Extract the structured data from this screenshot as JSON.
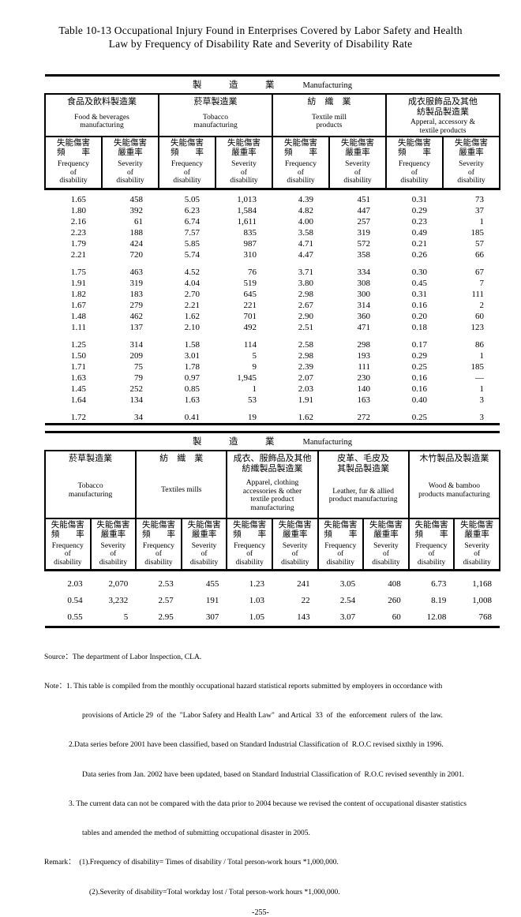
{
  "page": {
    "title": "Table 10-13  Occupational Injury Found in Enterprises Covered by Labor Safety and Health\nLaw by Frequency of Disability Rate and Severity of Disability Rate",
    "page_number": "-255-"
  },
  "sub_labels": {
    "freq_zh": "失能傷害\n頻　　率",
    "freq_en": "Frequency\nof\ndisability",
    "sev_zh": "失能傷害\n嚴重率",
    "sev_en": "Severity\nof\ndisability"
  },
  "table1": {
    "band": {
      "zh": "製　　　造　　　業",
      "en": "Manufacturing"
    },
    "groups": [
      {
        "zh": "食品及飲料製造業",
        "en": "Food & beverages\nmanufacturing"
      },
      {
        "zh": "菸草製造業",
        "en": "Tobacco\nmanufacturing"
      },
      {
        "zh": "紡　織　業",
        "en": "Textile mill\nproducts"
      },
      {
        "zh": "成衣服飾品及其他\n紡製品製造業",
        "en": "Apperal, accessory &\ntextile products"
      }
    ],
    "rows": [
      [
        "1.65",
        "458",
        "5.05",
        "1,013",
        "4.39",
        "451",
        "0.31",
        "73"
      ],
      [
        "1.80",
        "392",
        "6.23",
        "1,584",
        "4.82",
        "447",
        "0.29",
        "37"
      ],
      [
        "2.16",
        "61",
        "6.74",
        "1,611",
        "4.00",
        "257",
        "0.23",
        "1"
      ],
      [
        "2.23",
        "188",
        "7.57",
        "835",
        "3.58",
        "319",
        "0.49",
        "185"
      ],
      [
        "1.79",
        "424",
        "5.85",
        "987",
        "4.71",
        "572",
        "0.21",
        "57"
      ],
      [
        "2.21",
        "720",
        "5.74",
        "310",
        "4.47",
        "358",
        "0.26",
        "66"
      ],
      null,
      [
        "1.75",
        "463",
        "4.52",
        "76",
        "3.71",
        "334",
        "0.30",
        "67"
      ],
      [
        "1.91",
        "319",
        "4.04",
        "519",
        "3.80",
        "308",
        "0.45",
        "7"
      ],
      [
        "1.82",
        "183",
        "2.70",
        "645",
        "2.98",
        "300",
        "0.31",
        "111"
      ],
      [
        "1.67",
        "279",
        "2.21",
        "221",
        "2.67",
        "314",
        "0.16",
        "2"
      ],
      [
        "1.48",
        "462",
        "1.62",
        "701",
        "2.90",
        "360",
        "0.20",
        "60"
      ],
      [
        "1.11",
        "137",
        "2.10",
        "492",
        "2.51",
        "471",
        "0.18",
        "123"
      ],
      null,
      [
        "1.25",
        "314",
        "1.58",
        "114",
        "2.58",
        "298",
        "0.17",
        "86"
      ],
      [
        "1.50",
        "209",
        "3.01",
        "5",
        "2.98",
        "193",
        "0.29",
        "1"
      ],
      [
        "1.71",
        "75",
        "1.78",
        "9",
        "2.39",
        "111",
        "0.25",
        "185"
      ],
      [
        "1.63",
        "79",
        "0.97",
        "1,945",
        "2.07",
        "230",
        "0.16",
        "—"
      ],
      [
        "1.45",
        "252",
        "0.85",
        "1",
        "2.03",
        "140",
        "0.16",
        "1"
      ],
      [
        "1.64",
        "134",
        "1.63",
        "53",
        "1.91",
        "163",
        "0.40",
        "3"
      ],
      null,
      [
        "1.72",
        "34",
        "0.41",
        "19",
        "1.62",
        "272",
        "0.25",
        "3"
      ]
    ]
  },
  "table2": {
    "band": {
      "zh": "製　　　造　　　業",
      "en": "Manufacturing"
    },
    "groups": [
      {
        "zh": "菸草製造業",
        "en": "Tobacco\nmanufacturing"
      },
      {
        "zh": "紡　織　業",
        "en": "Textiles mills"
      },
      {
        "zh": "成衣、服飾品及其他\n紡織製品製造業",
        "en": "Apparel, clothing\naccessories & other\ntextile product\nmanufacturing"
      },
      {
        "zh": "皮革、毛皮及\n其製品製造業",
        "en": "Leather, fur & allied\nproduct manufacturing"
      },
      {
        "zh": "木竹製品及製造業",
        "en": "Wood & bamboo\nproducts manufacturing"
      }
    ],
    "rows": [
      [
        "2.03",
        "2,070",
        "2.53",
        "455",
        "1.23",
        "241",
        "3.05",
        "408",
        "6.73",
        "1,168"
      ],
      [
        "0.54",
        "3,232",
        "2.57",
        "191",
        "1.03",
        "22",
        "2.54",
        "260",
        "8.19",
        "1,008"
      ],
      [
        "0.55",
        "5",
        "2.95",
        "307",
        "1.05",
        "143",
        "3.07",
        "60",
        "12.08",
        "768"
      ]
    ]
  },
  "notes": {
    "lines": [
      "Source：The department of Labor Inspection, CLA.",
      "Note：1. This table is compiled from the monthly occupational hazard statistical reports submitted by employers in occordance with",
      "provisions of Article 29  of  the  \"Labor Safety and Health Law\"  and Artical  33  of  the  enforcement  rulers of  the law.",
      "2.Data series before 2001 have been classified, based on Standard Industrial Classification of  R.O.C revised sixthly in 1996.",
      "Data series from Jan. 2002 have been updated, based on Standard Industrial Classification of  R.O.C revised seventhly in 2001.",
      "3. The current data can not be compared with the data prior to 2004 because we revised the content of occupational disaster statistics",
      "tables and amended the method of submitting occupational disaster in 2005.",
      "Remark：  (1).Frequency of disability= Times of disability / Total person-work hours *1,000,000.",
      "(2).Severity of disability=Total workday lost / Total person-work hours *1,000,000."
    ]
  }
}
